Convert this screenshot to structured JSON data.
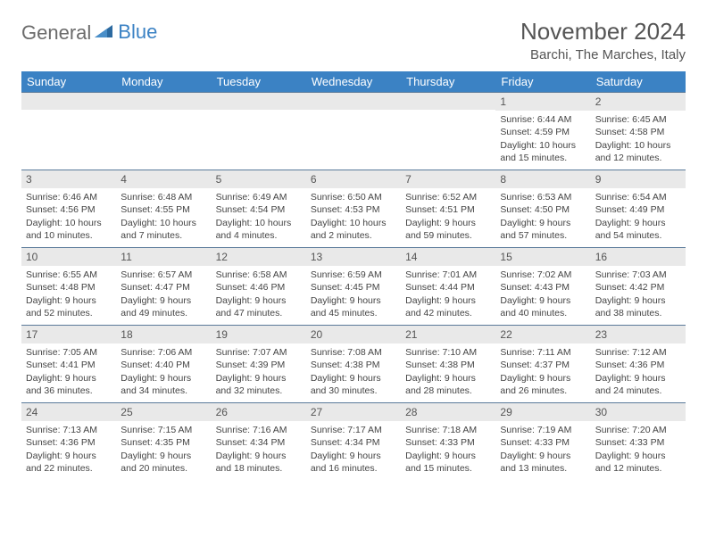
{
  "logo": {
    "text1": "General",
    "text2": "Blue"
  },
  "title": "November 2024",
  "location": "Barchi, The Marches, Italy",
  "colors": {
    "header_bg": "#3b82c4",
    "header_text": "#ffffff",
    "daynum_bg": "#e9e9e9",
    "border": "#5a7a9a",
    "text": "#444444"
  },
  "dayNames": [
    "Sunday",
    "Monday",
    "Tuesday",
    "Wednesday",
    "Thursday",
    "Friday",
    "Saturday"
  ],
  "weeks": [
    [
      null,
      null,
      null,
      null,
      null,
      {
        "n": "1",
        "sr": "6:44 AM",
        "ss": "4:59 PM",
        "dl": "10 hours and 15 minutes."
      },
      {
        "n": "2",
        "sr": "6:45 AM",
        "ss": "4:58 PM",
        "dl": "10 hours and 12 minutes."
      }
    ],
    [
      {
        "n": "3",
        "sr": "6:46 AM",
        "ss": "4:56 PM",
        "dl": "10 hours and 10 minutes."
      },
      {
        "n": "4",
        "sr": "6:48 AM",
        "ss": "4:55 PM",
        "dl": "10 hours and 7 minutes."
      },
      {
        "n": "5",
        "sr": "6:49 AM",
        "ss": "4:54 PM",
        "dl": "10 hours and 4 minutes."
      },
      {
        "n": "6",
        "sr": "6:50 AM",
        "ss": "4:53 PM",
        "dl": "10 hours and 2 minutes."
      },
      {
        "n": "7",
        "sr": "6:52 AM",
        "ss": "4:51 PM",
        "dl": "9 hours and 59 minutes."
      },
      {
        "n": "8",
        "sr": "6:53 AM",
        "ss": "4:50 PM",
        "dl": "9 hours and 57 minutes."
      },
      {
        "n": "9",
        "sr": "6:54 AM",
        "ss": "4:49 PM",
        "dl": "9 hours and 54 minutes."
      }
    ],
    [
      {
        "n": "10",
        "sr": "6:55 AM",
        "ss": "4:48 PM",
        "dl": "9 hours and 52 minutes."
      },
      {
        "n": "11",
        "sr": "6:57 AM",
        "ss": "4:47 PM",
        "dl": "9 hours and 49 minutes."
      },
      {
        "n": "12",
        "sr": "6:58 AM",
        "ss": "4:46 PM",
        "dl": "9 hours and 47 minutes."
      },
      {
        "n": "13",
        "sr": "6:59 AM",
        "ss": "4:45 PM",
        "dl": "9 hours and 45 minutes."
      },
      {
        "n": "14",
        "sr": "7:01 AM",
        "ss": "4:44 PM",
        "dl": "9 hours and 42 minutes."
      },
      {
        "n": "15",
        "sr": "7:02 AM",
        "ss": "4:43 PM",
        "dl": "9 hours and 40 minutes."
      },
      {
        "n": "16",
        "sr": "7:03 AM",
        "ss": "4:42 PM",
        "dl": "9 hours and 38 minutes."
      }
    ],
    [
      {
        "n": "17",
        "sr": "7:05 AM",
        "ss": "4:41 PM",
        "dl": "9 hours and 36 minutes."
      },
      {
        "n": "18",
        "sr": "7:06 AM",
        "ss": "4:40 PM",
        "dl": "9 hours and 34 minutes."
      },
      {
        "n": "19",
        "sr": "7:07 AM",
        "ss": "4:39 PM",
        "dl": "9 hours and 32 minutes."
      },
      {
        "n": "20",
        "sr": "7:08 AM",
        "ss": "4:38 PM",
        "dl": "9 hours and 30 minutes."
      },
      {
        "n": "21",
        "sr": "7:10 AM",
        "ss": "4:38 PM",
        "dl": "9 hours and 28 minutes."
      },
      {
        "n": "22",
        "sr": "7:11 AM",
        "ss": "4:37 PM",
        "dl": "9 hours and 26 minutes."
      },
      {
        "n": "23",
        "sr": "7:12 AM",
        "ss": "4:36 PM",
        "dl": "9 hours and 24 minutes."
      }
    ],
    [
      {
        "n": "24",
        "sr": "7:13 AM",
        "ss": "4:36 PM",
        "dl": "9 hours and 22 minutes."
      },
      {
        "n": "25",
        "sr": "7:15 AM",
        "ss": "4:35 PM",
        "dl": "9 hours and 20 minutes."
      },
      {
        "n": "26",
        "sr": "7:16 AM",
        "ss": "4:34 PM",
        "dl": "9 hours and 18 minutes."
      },
      {
        "n": "27",
        "sr": "7:17 AM",
        "ss": "4:34 PM",
        "dl": "9 hours and 16 minutes."
      },
      {
        "n": "28",
        "sr": "7:18 AM",
        "ss": "4:33 PM",
        "dl": "9 hours and 15 minutes."
      },
      {
        "n": "29",
        "sr": "7:19 AM",
        "ss": "4:33 PM",
        "dl": "9 hours and 13 minutes."
      },
      {
        "n": "30",
        "sr": "7:20 AM",
        "ss": "4:33 PM",
        "dl": "9 hours and 12 minutes."
      }
    ]
  ],
  "labels": {
    "sunrise": "Sunrise:",
    "sunset": "Sunset:",
    "daylight": "Daylight:"
  }
}
